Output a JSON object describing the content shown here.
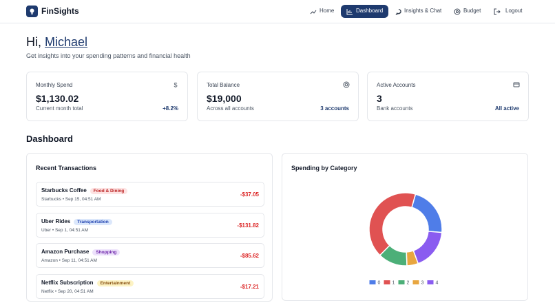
{
  "nav": {
    "brand": "FinSights",
    "items": [
      "Home",
      "Dashboard",
      "Insights & Chat",
      "Budget",
      "Logout"
    ]
  },
  "greeting": {
    "hi": "Hi,",
    "name": "Michael",
    "subtitle": "Get insights into your spending patterns and financial health"
  },
  "cards": [
    {
      "label": "Monthly Spend",
      "value": "$1,130.02",
      "note": "Current month total",
      "badge": "+8.2%"
    },
    {
      "label": "Total Balance",
      "value": "$19,000",
      "note": "Across all accounts",
      "badge": "3 accounts"
    },
    {
      "label": "Active Accounts",
      "value": "3",
      "note": "Bank accounts",
      "badge": "All active"
    }
  ],
  "section_title": "Dashboard",
  "transactions": {
    "title": "Recent Transactions",
    "items": [
      {
        "name": "Starbucks Coffee",
        "tag": "Food & Dining",
        "meta": "Starbucks • Sep 15, 04:51 AM",
        "amount": "-$37.05"
      },
      {
        "name": "Uber Rides",
        "tag": "Transportation",
        "meta": "Uber • Sep 1, 04:51 AM",
        "amount": "-$131.82"
      },
      {
        "name": "Amazon Purchase",
        "tag": "Shopping",
        "meta": "Amazon • Sep 11, 04:51 AM",
        "amount": "-$85.62"
      },
      {
        "name": "Netflix Subscription",
        "tag": "Entertainment",
        "meta": "Netflix • Sep 20, 04:51 AM",
        "amount": "-$17.21"
      }
    ]
  },
  "chart_data": {
    "type": "doughnut",
    "title": "Spending by Category",
    "categories": [
      "0",
      "1",
      "2",
      "3",
      "4"
    ],
    "values": [
      22,
      42,
      13,
      5,
      18
    ],
    "colors": [
      "#4f7de8",
      "#e05252",
      "#4caf78",
      "#e8a640",
      "#8a5cf0"
    ]
  }
}
